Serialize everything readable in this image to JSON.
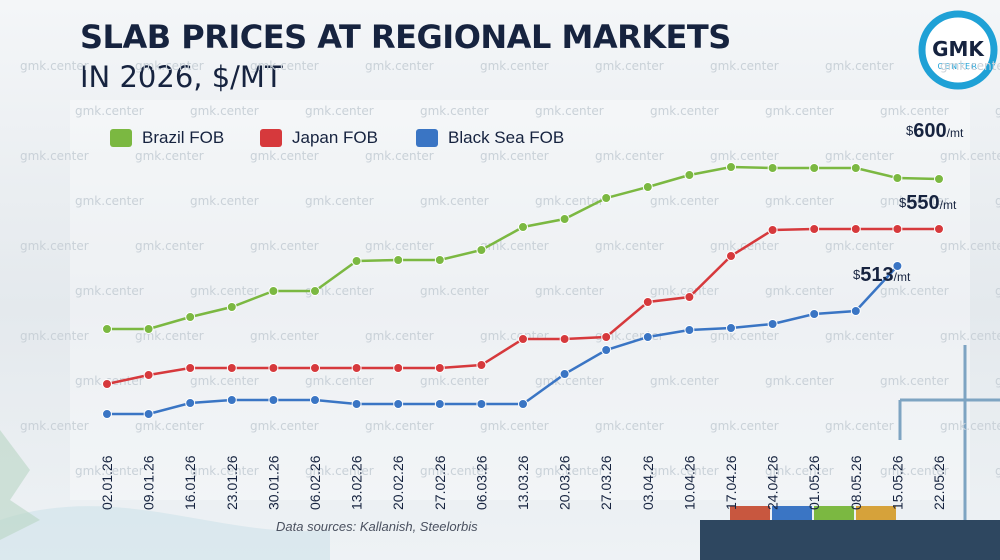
{
  "title_line1": "SLAB PRICES AT REGIONAL MARKETS",
  "title_line2": "IN 2026, $/MT",
  "source": "Data sources: Kallanish, Steelorbis",
  "logo": {
    "line1": "GMK",
    "line2": "CENTER"
  },
  "watermark": "gmk.center",
  "end_labels": {
    "brazil": {
      "currency": "$",
      "value": "600",
      "unit": "/mt"
    },
    "japan": {
      "currency": "$",
      "value": "550",
      "unit": "/mt"
    },
    "blacksea": {
      "currency": "$",
      "value": "513",
      "unit": "/mt"
    }
  },
  "chart_data": {
    "type": "line",
    "categories": [
      "02.01.26",
      "09.01.26",
      "16.01.26",
      "23.01.26",
      "30.01.26",
      "06.02.26",
      "13.02.26",
      "20.02.26",
      "27.02.26",
      "06.03.26",
      "13.03.26",
      "20.03.26",
      "27.03.26",
      "03.04.26",
      "10.04.26",
      "17.04.26",
      "24.04.26",
      "01.05.26",
      "08.05.26",
      "15.05.26",
      "22.05.26"
    ],
    "legend_position": "top-left",
    "grid": false,
    "series": [
      {
        "name": "Brazil FOB",
        "color": "#7bb841",
        "values": [
          450,
          450,
          462,
          472,
          488,
          488,
          518,
          519,
          519,
          529,
          552,
          560,
          581,
          592,
          604,
          612,
          611,
          611,
          611,
          601,
          600
        ]
      },
      {
        "name": "Japan FOB",
        "color": "#d6393c",
        "values": [
          395,
          404,
          411,
          411,
          411,
          411,
          411,
          411,
          411,
          414,
          440,
          440,
          442,
          477,
          482,
          523,
          549,
          550,
          550,
          550,
          550
        ]
      },
      {
        "name": "Black Sea FOB",
        "color": "#3a75c4",
        "values": [
          365,
          365,
          376,
          379,
          379,
          379,
          375,
          375,
          375,
          375,
          375,
          405,
          429,
          442,
          449,
          451,
          455,
          465,
          468,
          513,
          null
        ]
      }
    ]
  }
}
